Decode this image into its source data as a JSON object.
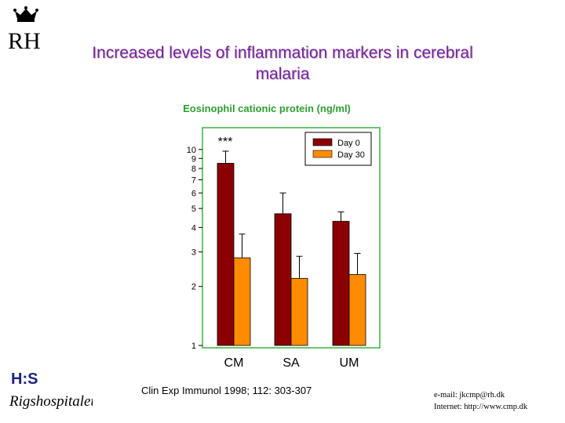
{
  "header": {
    "logo_text": "RH",
    "title_line1": "Increased levels of inflammation markers in cerebral",
    "title_line2": "malaria"
  },
  "chart_data": {
    "type": "bar",
    "title": "Eosinophil cationic protein (ng/ml)",
    "yscale": "log",
    "ylim": [
      1,
      12
    ],
    "yticks": [
      1,
      2,
      3,
      4,
      5,
      6,
      7,
      8,
      9,
      10
    ],
    "categories": [
      "CM",
      "SA",
      "UM"
    ],
    "series": [
      {
        "name": "Day 0",
        "color": "#8b0000",
        "values": [
          8.5,
          4.7,
          4.3
        ],
        "err_upper": [
          9.8,
          6.0,
          4.8
        ]
      },
      {
        "name": "Day 30",
        "color": "#ff8c00",
        "values": [
          2.8,
          2.2,
          2.3
        ],
        "err_upper": [
          3.7,
          2.85,
          2.95
        ]
      }
    ],
    "annotations": [
      {
        "text": "***",
        "category": "CM"
      }
    ],
    "legend_position": "top-right"
  },
  "footer": {
    "logo_text": "Rigshospitalet",
    "logo_mark": "H:S",
    "citation": "Clin Exp Immunol 1998; 112: 303-307",
    "email": "e-mail: jkcmp@rh.dk",
    "internet": "Internet: http://www.cmp.dk"
  }
}
